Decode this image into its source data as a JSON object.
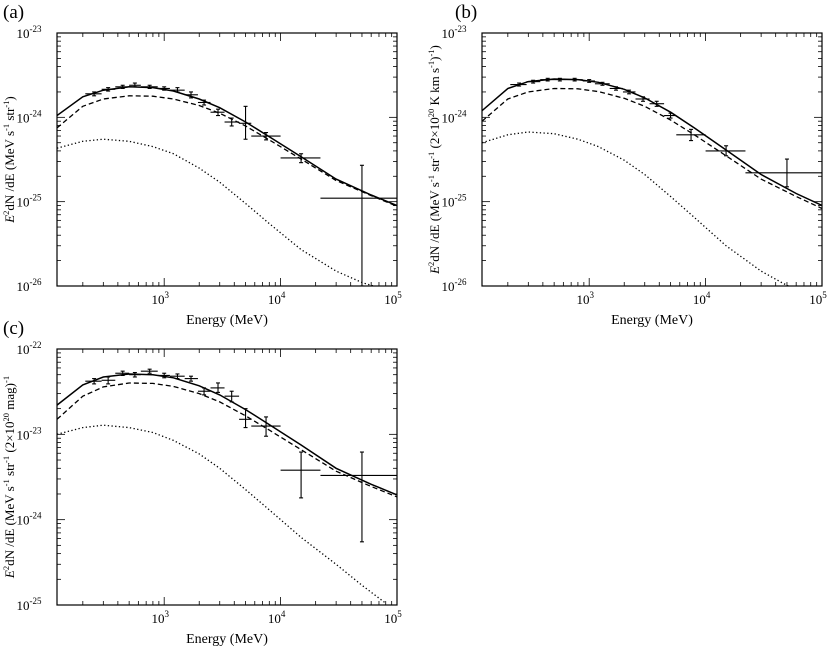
{
  "figure": {
    "panels": [
      {
        "id": "a",
        "label": "(a)"
      },
      {
        "id": "b",
        "label": "(b)"
      },
      {
        "id": "c",
        "label": "(c)"
      }
    ]
  },
  "chart_data": [
    {
      "type": "line",
      "panel_label": "(a)",
      "xlabel": "Energy (MeV)",
      "ylabel": {
        "base": "E",
        "sup1": "2",
        "mid": "dN /dE (MeV s",
        "sup2": "-1",
        "mid2": " str",
        "sup3": "-1",
        "end": ")"
      },
      "x_scale": "log",
      "y_scale": "log",
      "xlim": [
        120,
        100000
      ],
      "ylim": [
        1e-26,
        1e-23
      ],
      "x_ticks": [
        {
          "base": "10",
          "exp": "3",
          "value": 1000
        },
        {
          "base": "10",
          "exp": "4",
          "value": 10000
        },
        {
          "base": "10",
          "exp": "5",
          "value": 100000
        }
      ],
      "y_ticks": [
        {
          "base": "10",
          "exp": "-26",
          "value": 1e-26
        },
        {
          "base": "10",
          "exp": "-25",
          "value": 1e-25
        },
        {
          "base": "10",
          "exp": "-24",
          "value": 1e-24
        },
        {
          "base": "10",
          "exp": "-23",
          "value": 1e-23
        }
      ],
      "series": [
        {
          "style": "solid",
          "x": [
            120,
            200,
            300,
            500,
            800,
            1200,
            2000,
            3000,
            5000,
            8000,
            15000,
            30000,
            60000,
            100000
          ],
          "y": [
            1.05e-24,
            1.75e-24,
            2.1e-24,
            2.3e-24,
            2.25e-24,
            2.05e-24,
            1.65e-24,
            1.3e-24,
            8.8e-25,
            5.9e-25,
            3.4e-25,
            1.85e-25,
            1.2e-25,
            9e-26
          ]
        },
        {
          "style": "dashed",
          "x": [
            120,
            200,
            300,
            500,
            800,
            1200,
            2000,
            3000,
            5000,
            8000,
            15000,
            30000,
            60000,
            100000
          ],
          "y": [
            7.5e-25,
            1.35e-24,
            1.65e-24,
            1.8e-24,
            1.78e-24,
            1.65e-24,
            1.38e-24,
            1.12e-24,
            7.9e-25,
            5.4e-25,
            3.2e-25,
            1.78e-25,
            1.18e-25,
            8.8e-26
          ]
        },
        {
          "style": "dotted",
          "x": [
            120,
            200,
            300,
            500,
            800,
            1200,
            2000,
            3000,
            5000,
            8000,
            15000,
            30000,
            50000,
            80000
          ],
          "y": [
            4.3e-25,
            5.2e-25,
            5.5e-25,
            5.2e-25,
            4.5e-25,
            3.7e-25,
            2.5e-25,
            1.7e-25,
            9.5e-26,
            5.5e-26,
            2.7e-26,
            1.5e-26,
            1.1e-26,
            9e-27
          ]
        }
      ],
      "points": [
        {
          "x": 250,
          "y": 1.9e-24,
          "xerr": [
            210,
            290
          ],
          "yerr": [
            1.8e-24,
            2e-24
          ]
        },
        {
          "x": 330,
          "y": 2.15e-24,
          "xerr": [
            290,
            380
          ],
          "yerr": [
            2.05e-24,
            2.25e-24
          ]
        },
        {
          "x": 440,
          "y": 2.3e-24,
          "xerr": [
            380,
            500
          ],
          "yerr": [
            2.2e-24,
            2.4e-24
          ]
        },
        {
          "x": 560,
          "y": 2.4e-24,
          "xerr": [
            500,
            630
          ],
          "yerr": [
            2.3e-24,
            2.55e-24
          ]
        },
        {
          "x": 750,
          "y": 2.3e-24,
          "xerr": [
            630,
            880
          ],
          "yerr": [
            2.2e-24,
            2.4e-24
          ]
        },
        {
          "x": 1000,
          "y": 2.2e-24,
          "xerr": [
            880,
            1120
          ],
          "yerr": [
            2.1e-24,
            2.3e-24
          ]
        },
        {
          "x": 1300,
          "y": 2.1e-24,
          "xerr": [
            1120,
            1500
          ],
          "yerr": [
            2e-24,
            2.25e-24
          ]
        },
        {
          "x": 1700,
          "y": 1.85e-24,
          "xerr": [
            1500,
            1950
          ],
          "yerr": [
            1.7e-24,
            2e-24
          ]
        },
        {
          "x": 2200,
          "y": 1.5e-24,
          "xerr": [
            1950,
            2500
          ],
          "yerr": [
            1.4e-24,
            1.6e-24
          ]
        },
        {
          "x": 2900,
          "y": 1.15e-24,
          "xerr": [
            2500,
            3300
          ],
          "yerr": [
            1.05e-24,
            1.25e-24
          ]
        },
        {
          "x": 3800,
          "y": 8.8e-25,
          "xerr": [
            3300,
            4400
          ],
          "yerr": [
            7.9e-25,
            9.8e-25
          ]
        },
        {
          "x": 5000,
          "y": 8.5e-25,
          "xerr": [
            4400,
            5600
          ],
          "yerr": [
            5.5e-25,
            1.35e-24
          ]
        },
        {
          "x": 7500,
          "y": 6e-25,
          "xerr": [
            5600,
            10000
          ],
          "yerr": [
            5.4e-25,
            6.6e-25
          ]
        },
        {
          "x": 15000,
          "y": 3.3e-25,
          "xerr": [
            10000,
            22000
          ],
          "yerr": [
            2.9e-25,
            3.7e-25
          ]
        },
        {
          "x": 50000,
          "y": 1.1e-25,
          "xerr": [
            22000,
            100000
          ],
          "yerr": [
            1e-26,
            2.7e-25
          ]
        }
      ]
    },
    {
      "type": "line",
      "panel_label": "(b)",
      "xlabel": "Energy (MeV)",
      "ylabel": {
        "base": "E",
        "sup1": "2",
        "mid": "dN /dE (MeV s",
        "sup2": "-1",
        "mid2": " str",
        "sup3": "-1",
        "mid3": " (2×10",
        "sup4": "20",
        "mid4": " K km s",
        "sup5": "-1",
        "mid5": ")",
        "sup6": "-1",
        "end": ")"
      },
      "x_scale": "log",
      "y_scale": "log",
      "xlim": [
        120,
        100000
      ],
      "ylim": [
        1e-26,
        1e-23
      ],
      "x_ticks": [
        {
          "base": "10",
          "exp": "3",
          "value": 1000
        },
        {
          "base": "10",
          "exp": "4",
          "value": 10000
        },
        {
          "base": "10",
          "exp": "5",
          "value": 100000
        }
      ],
      "y_ticks": [
        {
          "base": "10",
          "exp": "-26",
          "value": 1e-26
        },
        {
          "base": "10",
          "exp": "-25",
          "value": 1e-25
        },
        {
          "base": "10",
          "exp": "-24",
          "value": 1e-24
        },
        {
          "base": "10",
          "exp": "-23",
          "value": 1e-23
        }
      ],
      "series": [
        {
          "style": "solid",
          "x": [
            120,
            200,
            300,
            500,
            800,
            1200,
            2000,
            3000,
            5000,
            8000,
            15000,
            30000,
            60000,
            100000
          ],
          "y": [
            1.2e-24,
            2.2e-24,
            2.65e-24,
            2.85e-24,
            2.8e-24,
            2.6e-24,
            2.15e-24,
            1.7e-24,
            1.15e-24,
            7.5e-25,
            4.1e-25,
            2.1e-25,
            1.25e-25,
            9e-26
          ]
        },
        {
          "style": "dashed",
          "x": [
            120,
            200,
            300,
            500,
            800,
            1200,
            2000,
            3000,
            5000,
            8000,
            15000,
            30000,
            60000,
            100000
          ],
          "y": [
            9e-25,
            1.65e-24,
            2e-24,
            2.2e-24,
            2.18e-24,
            2.02e-24,
            1.68e-24,
            1.35e-24,
            9.3e-25,
            6.2e-25,
            3.5e-25,
            1.85e-25,
            1.15e-25,
            8.3e-26
          ]
        },
        {
          "style": "dotted",
          "x": [
            120,
            200,
            300,
            500,
            800,
            1200,
            2000,
            3000,
            5000,
            8000,
            15000,
            30000,
            45000,
            70000
          ],
          "y": [
            5e-25,
            6.2e-25,
            6.7e-25,
            6.4e-25,
            5.5e-25,
            4.5e-25,
            3.1e-25,
            2.1e-25,
            1.15e-25,
            6.5e-26,
            3e-26,
            1.5e-26,
            1.1e-26,
            8e-27
          ]
        }
      ],
      "points": [
        {
          "x": 250,
          "y": 2.45e-24,
          "xerr": [
            210,
            290
          ],
          "yerr": [
            2.35e-24,
            2.55e-24
          ]
        },
        {
          "x": 330,
          "y": 2.65e-24,
          "xerr": [
            290,
            380
          ],
          "yerr": [
            2.55e-24,
            2.75e-24
          ]
        },
        {
          "x": 440,
          "y": 2.8e-24,
          "xerr": [
            380,
            500
          ],
          "yerr": [
            2.7e-24,
            2.9e-24
          ]
        },
        {
          "x": 560,
          "y": 2.8e-24,
          "xerr": [
            500,
            630
          ],
          "yerr": [
            2.7e-24,
            2.9e-24
          ]
        },
        {
          "x": 750,
          "y": 2.8e-24,
          "xerr": [
            630,
            880
          ],
          "yerr": [
            2.7e-24,
            2.9e-24
          ]
        },
        {
          "x": 1000,
          "y": 2.7e-24,
          "xerr": [
            880,
            1120
          ],
          "yerr": [
            2.6e-24,
            2.8e-24
          ]
        },
        {
          "x": 1300,
          "y": 2.5e-24,
          "xerr": [
            1120,
            1500
          ],
          "yerr": [
            2.4e-24,
            2.6e-24
          ]
        },
        {
          "x": 1700,
          "y": 2.2e-24,
          "xerr": [
            1500,
            1950
          ],
          "yerr": [
            2.1e-24,
            2.3e-24
          ]
        },
        {
          "x": 2200,
          "y": 2e-24,
          "xerr": [
            1950,
            2500
          ],
          "yerr": [
            1.9e-24,
            2.1e-24
          ]
        },
        {
          "x": 2900,
          "y": 1.65e-24,
          "xerr": [
            2500,
            3300
          ],
          "yerr": [
            1.55e-24,
            1.75e-24
          ]
        },
        {
          "x": 3800,
          "y": 1.45e-24,
          "xerr": [
            3300,
            4400
          ],
          "yerr": [
            1.35e-24,
            1.55e-24
          ]
        },
        {
          "x": 5000,
          "y": 1.05e-24,
          "xerr": [
            4400,
            5600
          ],
          "yerr": [
            9.8e-25,
            1.12e-24
          ]
        },
        {
          "x": 7500,
          "y": 6.2e-25,
          "xerr": [
            5600,
            10000
          ],
          "yerr": [
            5.3e-25,
            7.2e-25
          ]
        },
        {
          "x": 15000,
          "y": 4e-25,
          "xerr": [
            10000,
            22000
          ],
          "yerr": [
            3.5e-25,
            4.6e-25
          ]
        },
        {
          "x": 50000,
          "y": 2.2e-25,
          "xerr": [
            22000,
            100000
          ],
          "yerr": [
            1.5e-25,
            3.2e-25
          ]
        }
      ]
    },
    {
      "type": "line",
      "panel_label": "(c)",
      "xlabel": "Energy (MeV)",
      "ylabel": {
        "base": "E",
        "sup1": "2",
        "mid": "dN /dE (MeV s",
        "sup2": "-1",
        "mid2": " str",
        "sup3": "-1",
        "mid3": " (2×10",
        "sup4": "20",
        "mid4": " mag)",
        "sup5": "-1",
        "end": ""
      },
      "x_scale": "log",
      "y_scale": "log",
      "xlim": [
        120,
        100000
      ],
      "ylim": [
        1e-25,
        1e-22
      ],
      "x_ticks": [
        {
          "base": "10",
          "exp": "3",
          "value": 1000
        },
        {
          "base": "10",
          "exp": "4",
          "value": 10000
        },
        {
          "base": "10",
          "exp": "5",
          "value": 100000
        }
      ],
      "y_ticks": [
        {
          "base": "10",
          "exp": "-25",
          "value": 1e-25
        },
        {
          "base": "10",
          "exp": "-24",
          "value": 1e-24
        },
        {
          "base": "10",
          "exp": "-23",
          "value": 1e-23
        },
        {
          "base": "10",
          "exp": "-22",
          "value": 1e-22
        }
      ],
      "series": [
        {
          "style": "solid",
          "x": [
            120,
            200,
            300,
            500,
            800,
            1200,
            2000,
            3000,
            5000,
            8000,
            15000,
            30000,
            60000,
            100000
          ],
          "y": [
            2.2e-23,
            3.8e-23,
            4.7e-23,
            5.1e-23,
            5e-23,
            4.6e-23,
            3.7e-23,
            2.9e-23,
            1.95e-23,
            1.3e-23,
            7.5e-24,
            4e-24,
            2.6e-24,
            1.95e-24
          ]
        },
        {
          "style": "dashed",
          "x": [
            120,
            200,
            300,
            500,
            800,
            1200,
            2000,
            3000,
            5000,
            8000,
            15000,
            30000,
            60000,
            100000
          ],
          "y": [
            1.5e-23,
            2.8e-23,
            3.6e-23,
            4e-23,
            3.95e-23,
            3.65e-23,
            3e-23,
            2.4e-23,
            1.65e-23,
            1.12e-23,
            6.6e-24,
            3.7e-24,
            2.45e-24,
            1.85e-24
          ]
        },
        {
          "style": "dotted",
          "x": [
            120,
            200,
            300,
            500,
            800,
            1200,
            2000,
            3000,
            5000,
            8000,
            15000,
            30000,
            50000,
            80000
          ],
          "y": [
            1e-23,
            1.2e-23,
            1.28e-23,
            1.2e-23,
            1.05e-23,
            8.5e-24,
            5.9e-24,
            4e-24,
            2.25e-24,
            1.3e-24,
            6.2e-25,
            3e-25,
            1.7e-25,
            1.05e-25
          ]
        }
      ],
      "points": [
        {
          "x": 250,
          "y": 4.2e-23,
          "xerr": [
            210,
            290
          ],
          "yerr": [
            3.9e-23,
            4.5e-23
          ]
        },
        {
          "x": 330,
          "y": 4.3e-23,
          "xerr": [
            290,
            380
          ],
          "yerr": [
            3.9e-23,
            4.7e-23
          ]
        },
        {
          "x": 440,
          "y": 5.2e-23,
          "xerr": [
            380,
            500
          ],
          "yerr": [
            4.9e-23,
            5.5e-23
          ]
        },
        {
          "x": 560,
          "y": 5e-23,
          "xerr": [
            500,
            630
          ],
          "yerr": [
            4.7e-23,
            5.3e-23
          ]
        },
        {
          "x": 750,
          "y": 5.5e-23,
          "xerr": [
            630,
            880
          ],
          "yerr": [
            5.2e-23,
            5.8e-23
          ]
        },
        {
          "x": 1000,
          "y": 4.9e-23,
          "xerr": [
            880,
            1120
          ],
          "yerr": [
            4.6e-23,
            5.2e-23
          ]
        },
        {
          "x": 1300,
          "y": 4.8e-23,
          "xerr": [
            1120,
            1500
          ],
          "yerr": [
            4.5e-23,
            5.1e-23
          ]
        },
        {
          "x": 1700,
          "y": 4.5e-23,
          "xerr": [
            1500,
            1950
          ],
          "yerr": [
            4.2e-23,
            4.8e-23
          ]
        },
        {
          "x": 2200,
          "y": 3.2e-23,
          "xerr": [
            1950,
            2500
          ],
          "yerr": [
            2.9e-23,
            3.5e-23
          ]
        },
        {
          "x": 2900,
          "y": 3.5e-23,
          "xerr": [
            2500,
            3300
          ],
          "yerr": [
            3.1e-23,
            4e-23
          ]
        },
        {
          "x": 3800,
          "y": 2.8e-23,
          "xerr": [
            3300,
            4400
          ],
          "yerr": [
            2.4e-23,
            3.2e-23
          ]
        },
        {
          "x": 5000,
          "y": 1.5e-23,
          "xerr": [
            4400,
            5600
          ],
          "yerr": [
            1.2e-23,
            2e-23
          ]
        },
        {
          "x": 7500,
          "y": 1.25e-23,
          "xerr": [
            5600,
            10000
          ],
          "yerr": [
            9.5e-24,
            1.6e-23
          ]
        },
        {
          "x": 15000,
          "y": 3.8e-24,
          "xerr": [
            10000,
            22000
          ],
          "yerr": [
            1.8e-24,
            6.2e-24
          ]
        },
        {
          "x": 50000,
          "y": 3.3e-24,
          "xerr": [
            22000,
            100000
          ],
          "yerr": [
            5.5e-25,
            6.2e-24
          ]
        }
      ]
    }
  ]
}
